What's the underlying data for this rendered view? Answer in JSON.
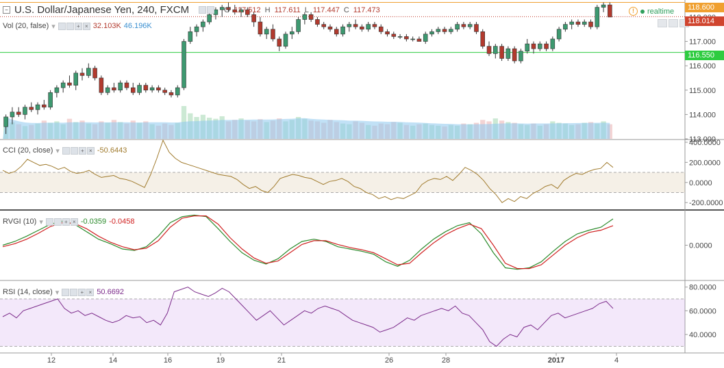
{
  "header": {
    "title": "U.S. Dollar/Japanese Yen, 240, FXCM",
    "o_label": "O",
    "o_value": "117.512",
    "h_label": "H",
    "h_value": "117.611",
    "l_label": "L",
    "l_value": "117.447",
    "c_label": "C",
    "c_value": "117.473",
    "realtime": "realtime"
  },
  "indicators": {
    "vol": {
      "label": "Vol (20, false)",
      "value1": "32.103K",
      "value2": "46.196K"
    },
    "cci": {
      "label": "CCI (20, close)",
      "value": "-50.6443"
    },
    "rvgi": {
      "label": "RVGI (10)",
      "value1": "-0.0359",
      "value2": "-0.0458"
    },
    "rsi": {
      "label": "RSI (14, close)",
      "value": "50.6692"
    }
  },
  "price_badges": {
    "upper": "118.600",
    "current": "118.014",
    "support": "116.550"
  },
  "colors": {
    "up": "#3d9970",
    "down": "#b23a2e",
    "cci_line": "#a07a2c",
    "rvgi_main": "#2a8a2a",
    "rvgi_signal": "#d02020",
    "rsi_line": "#7b2a8a",
    "support_line": "#2ecc40",
    "upper_line": "#f0a030"
  },
  "chart_data": [
    {
      "type": "candlestick",
      "title": "U.S. Dollar/Japanese Yen, 240, FXCM",
      "y_ticks": [
        "118.000",
        "117.000",
        "116.000",
        "115.000",
        "114.000",
        "113.000"
      ],
      "ylim": [
        113.0,
        118.7
      ],
      "x_ticks": [
        "12",
        "14",
        "16",
        "19",
        "21",
        "26",
        "28",
        "2017",
        "4"
      ],
      "horizontal_lines": [
        118.6,
        118.014,
        116.55
      ],
      "candles": [
        [
          113.5,
          114.0,
          113.2,
          113.9
        ],
        [
          113.9,
          114.3,
          113.6,
          114.1
        ],
        [
          114.1,
          114.3,
          113.9,
          114.0
        ],
        [
          114.0,
          114.4,
          113.8,
          114.3
        ],
        [
          114.3,
          114.5,
          114.1,
          114.2
        ],
        [
          114.2,
          114.5,
          114.0,
          114.4
        ],
        [
          114.4,
          114.6,
          114.2,
          114.3
        ],
        [
          114.3,
          115.0,
          114.2,
          114.9
        ],
        [
          114.9,
          115.2,
          114.7,
          115.1
        ],
        [
          115.1,
          115.4,
          114.9,
          115.3
        ],
        [
          115.3,
          115.6,
          115.1,
          115.2
        ],
        [
          115.2,
          115.8,
          115.0,
          115.7
        ],
        [
          115.7,
          115.9,
          115.4,
          115.6
        ],
        [
          115.6,
          116.1,
          115.5,
          115.9
        ],
        [
          115.9,
          116.0,
          115.4,
          115.5
        ],
        [
          115.5,
          115.6,
          114.8,
          114.9
        ],
        [
          114.9,
          115.2,
          114.8,
          115.1
        ],
        [
          115.1,
          115.3,
          114.9,
          115.0
        ],
        [
          115.0,
          115.4,
          114.9,
          115.3
        ],
        [
          115.3,
          115.4,
          115.0,
          115.1
        ],
        [
          115.1,
          115.3,
          114.8,
          114.9
        ],
        [
          114.9,
          115.3,
          114.8,
          115.2
        ],
        [
          115.2,
          115.3,
          114.9,
          115.0
        ],
        [
          115.0,
          115.2,
          114.9,
          115.1
        ],
        [
          115.1,
          115.2,
          114.9,
          115.0
        ],
        [
          115.0,
          115.1,
          114.8,
          114.9
        ],
        [
          114.9,
          115.0,
          114.7,
          114.8
        ],
        [
          114.8,
          115.2,
          114.7,
          115.1
        ],
        [
          115.1,
          117.1,
          115.0,
          117.0
        ],
        [
          117.0,
          117.6,
          116.9,
          117.4
        ],
        [
          117.4,
          117.7,
          117.2,
          117.6
        ],
        [
          117.6,
          117.9,
          117.4,
          117.8
        ],
        [
          117.8,
          118.2,
          117.7,
          118.1
        ],
        [
          118.1,
          118.4,
          117.9,
          118.3
        ],
        [
          118.3,
          118.5,
          118.0,
          118.4
        ],
        [
          118.4,
          118.6,
          118.2,
          118.3
        ],
        [
          118.3,
          118.5,
          118.1,
          118.2
        ],
        [
          118.2,
          118.4,
          118.0,
          118.3
        ],
        [
          118.3,
          118.4,
          118.0,
          118.1
        ],
        [
          118.1,
          118.2,
          117.6,
          117.8
        ],
        [
          117.8,
          118.0,
          117.2,
          117.3
        ],
        [
          117.3,
          117.6,
          117.1,
          117.5
        ],
        [
          117.5,
          117.7,
          117.0,
          117.1
        ],
        [
          117.1,
          117.2,
          116.6,
          116.8
        ],
        [
          116.8,
          117.4,
          116.7,
          117.3
        ],
        [
          117.3,
          117.6,
          117.1,
          117.4
        ],
        [
          117.4,
          118.0,
          117.3,
          117.9
        ],
        [
          117.9,
          118.2,
          117.7,
          118.1
        ],
        [
          118.1,
          118.2,
          117.8,
          117.9
        ],
        [
          117.9,
          118.0,
          117.6,
          117.7
        ],
        [
          117.7,
          117.8,
          117.5,
          117.6
        ],
        [
          117.6,
          117.7,
          117.4,
          117.5
        ],
        [
          117.5,
          117.6,
          117.2,
          117.3
        ],
        [
          117.3,
          117.7,
          117.2,
          117.6
        ],
        [
          117.6,
          117.8,
          117.4,
          117.7
        ],
        [
          117.7,
          117.9,
          117.5,
          117.6
        ],
        [
          117.6,
          117.7,
          117.4,
          117.5
        ],
        [
          117.5,
          117.8,
          117.4,
          117.7
        ],
        [
          117.7,
          117.8,
          117.5,
          117.6
        ],
        [
          117.6,
          117.7,
          117.3,
          117.4
        ],
        [
          117.4,
          117.5,
          117.2,
          117.3
        ],
        [
          117.3,
          117.4,
          117.1,
          117.2
        ],
        [
          117.2,
          117.3,
          117.1,
          117.2
        ],
        [
          117.2,
          117.3,
          117.0,
          117.1
        ],
        [
          117.1,
          117.2,
          117.0,
          117.1
        ],
        [
          117.1,
          117.2,
          117.0,
          117.0
        ],
        [
          117.0,
          117.4,
          116.9,
          117.3
        ],
        [
          117.3,
          117.5,
          117.2,
          117.4
        ],
        [
          117.4,
          117.6,
          117.3,
          117.5
        ],
        [
          117.5,
          117.6,
          117.3,
          117.4
        ],
        [
          117.4,
          117.6,
          117.3,
          117.5
        ],
        [
          117.5,
          117.8,
          117.4,
          117.7
        ],
        [
          117.7,
          117.8,
          117.5,
          117.6
        ],
        [
          117.6,
          117.8,
          117.5,
          117.7
        ],
        [
          117.7,
          117.8,
          117.3,
          117.4
        ],
        [
          117.4,
          117.5,
          116.7,
          116.8
        ],
        [
          116.8,
          117.0,
          116.4,
          116.5
        ],
        [
          116.5,
          116.9,
          116.3,
          116.8
        ],
        [
          116.8,
          116.9,
          116.2,
          116.3
        ],
        [
          116.3,
          116.8,
          116.2,
          116.7
        ],
        [
          116.7,
          116.8,
          116.1,
          116.2
        ],
        [
          116.2,
          116.7,
          116.1,
          116.6
        ],
        [
          116.6,
          117.1,
          116.5,
          116.9
        ],
        [
          116.9,
          117.0,
          116.5,
          116.7
        ],
        [
          116.7,
          117.0,
          116.6,
          116.9
        ],
        [
          116.9,
          117.0,
          116.6,
          116.7
        ],
        [
          116.7,
          117.2,
          116.6,
          117.1
        ],
        [
          117.1,
          117.6,
          117.0,
          117.5
        ],
        [
          117.5,
          117.8,
          117.4,
          117.7
        ],
        [
          117.7,
          117.9,
          117.5,
          117.8
        ],
        [
          117.8,
          117.9,
          117.6,
          117.7
        ],
        [
          117.7,
          117.9,
          117.6,
          117.8
        ],
        [
          117.8,
          117.9,
          117.5,
          117.6
        ],
        [
          117.6,
          118.5,
          117.5,
          118.4
        ],
        [
          118.4,
          118.6,
          118.2,
          118.5
        ],
        [
          118.5,
          118.6,
          118.0,
          118.0
        ]
      ]
    },
    {
      "type": "bar",
      "title": "Vol (20, false)",
      "values": [
        60,
        45,
        40,
        35,
        38,
        42,
        50,
        44,
        48,
        40,
        55,
        46,
        50,
        42,
        40,
        48,
        44,
        52,
        46,
        42,
        50,
        44,
        48,
        40,
        36,
        42,
        38,
        44,
        90,
        70,
        60,
        66,
        58,
        55,
        62,
        48,
        52,
        56,
        50,
        48,
        54,
        46,
        50,
        56,
        48,
        52,
        60,
        55,
        50,
        48,
        44,
        52,
        46,
        42,
        40,
        48,
        44,
        38,
        36,
        42,
        40,
        46,
        44,
        38,
        36,
        40,
        42,
        38,
        36,
        34,
        38,
        36,
        42,
        40,
        44,
        52,
        48,
        56,
        50,
        46,
        44,
        40,
        38,
        42,
        36,
        40,
        48,
        44,
        42,
        38,
        40,
        44,
        46,
        42,
        48,
        40
      ]
    },
    {
      "type": "line",
      "title": "CCI (20, close)",
      "y_ticks": [
        "400.0000",
        "200.0000",
        "0.0000",
        "-200.0000"
      ],
      "ylim": [
        -260,
        420
      ],
      "band": [
        -100,
        100
      ],
      "values": [
        120,
        90,
        110,
        160,
        230,
        200,
        170,
        180,
        160,
        130,
        150,
        110,
        90,
        100,
        120,
        80,
        50,
        60,
        70,
        40,
        30,
        10,
        -20,
        -50,
        80,
        240,
        420,
        300,
        240,
        200,
        180,
        160,
        140,
        120,
        100,
        80,
        70,
        60,
        30,
        -20,
        -60,
        -40,
        -80,
        -100,
        -40,
        40,
        60,
        80,
        70,
        50,
        40,
        10,
        -20,
        10,
        20,
        40,
        10,
        -40,
        -60,
        -100,
        -120,
        -160,
        -140,
        -170,
        -150,
        -160,
        -130,
        -100,
        -20,
        20,
        40,
        30,
        60,
        20,
        80,
        150,
        120,
        80,
        20,
        -60,
        -120,
        -200,
        -160,
        -190,
        -140,
        -160,
        -110,
        -80,
        -40,
        -20,
        -60,
        20,
        60,
        90,
        80,
        110,
        130,
        140,
        200,
        150
      ]
    },
    {
      "type": "line",
      "title": "RVGI (10)",
      "y_ticks": [
        "0.0000"
      ],
      "ylim": [
        -0.45,
        0.45
      ],
      "series": [
        {
          "name": "",
          "values": [
            0.0,
            0.05,
            0.12,
            0.2,
            0.28,
            0.32,
            0.28,
            0.18,
            0.08,
            0.02,
            -0.05,
            -0.07,
            -0.02,
            0.12,
            0.3,
            0.38,
            0.4,
            0.38,
            0.22,
            0.05,
            -0.1,
            -0.2,
            -0.25,
            -0.18,
            -0.05,
            0.05,
            0.08,
            0.05,
            -0.02,
            -0.05,
            -0.08,
            -0.12,
            -0.22,
            -0.28,
            -0.2,
            -0.05,
            0.08,
            0.18,
            0.26,
            0.3,
            0.15,
            -0.1,
            -0.3,
            -0.32,
            -0.3,
            -0.22,
            -0.08,
            0.05,
            0.15,
            0.2,
            0.24,
            0.35
          ]
        },
        {
          "name": "",
          "values": [
            -0.02,
            0.02,
            0.08,
            0.16,
            0.25,
            0.3,
            0.29,
            0.22,
            0.12,
            0.04,
            -0.02,
            -0.06,
            -0.04,
            0.06,
            0.24,
            0.36,
            0.39,
            0.39,
            0.28,
            0.1,
            -0.05,
            -0.17,
            -0.24,
            -0.21,
            -0.1,
            0.01,
            0.06,
            0.06,
            0.01,
            -0.03,
            -0.06,
            -0.1,
            -0.18,
            -0.26,
            -0.24,
            -0.1,
            0.03,
            0.14,
            0.22,
            0.28,
            0.22,
            0.0,
            -0.24,
            -0.31,
            -0.31,
            -0.26,
            -0.13,
            0.0,
            0.1,
            0.17,
            0.2,
            0.26
          ]
        }
      ]
    },
    {
      "type": "line",
      "title": "RSI (14, close)",
      "y_ticks": [
        "80.0000",
        "60.0000",
        "40.0000"
      ],
      "ylim": [
        25,
        85
      ],
      "band": [
        30,
        70
      ],
      "values": [
        55,
        58,
        54,
        60,
        62,
        64,
        66,
        68,
        70,
        62,
        58,
        60,
        56,
        58,
        55,
        52,
        50,
        52,
        56,
        54,
        55,
        50,
        52,
        48,
        58,
        76,
        78,
        80,
        76,
        74,
        72,
        75,
        79,
        76,
        70,
        64,
        58,
        52,
        56,
        60,
        54,
        48,
        52,
        56,
        60,
        58,
        62,
        64,
        62,
        60,
        56,
        52,
        50,
        48,
        46,
        42,
        44,
        46,
        50,
        54,
        52,
        56,
        58,
        60,
        62,
        60,
        64,
        58,
        56,
        50,
        44,
        34,
        30,
        36,
        40,
        38,
        46,
        48,
        44,
        50,
        56,
        58,
        54,
        56,
        58,
        60,
        62,
        66,
        68,
        62
      ]
    }
  ]
}
